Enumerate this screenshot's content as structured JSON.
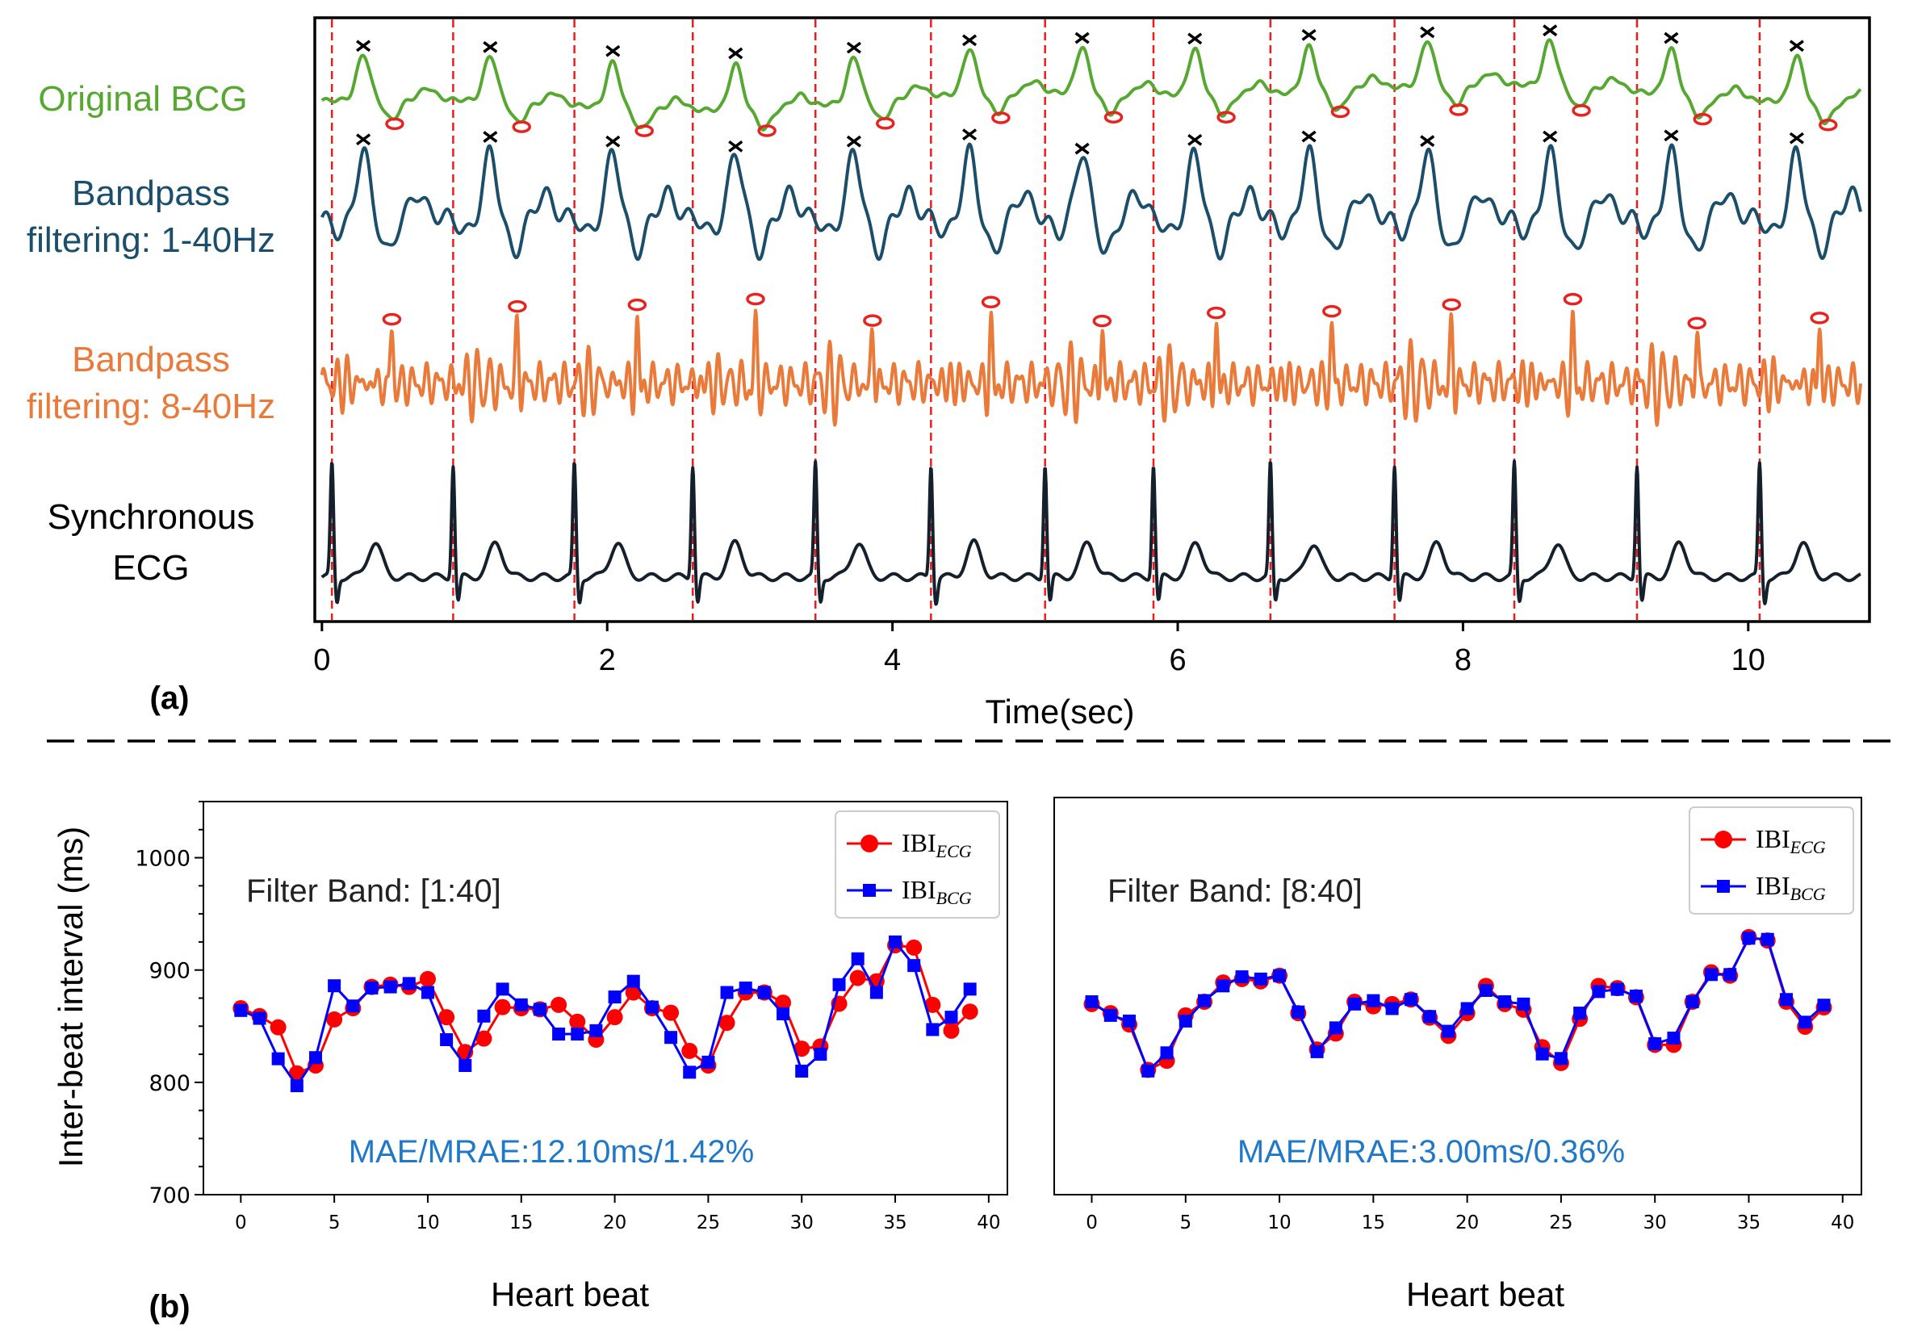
{
  "figure": {
    "panel_a_label": "(a)",
    "panel_b_label": "(b)"
  },
  "colors": {
    "original_bcg": "#56a831",
    "bp_1_40": "#1b4e6b",
    "bp_8_40": "#ea7a3a",
    "ecg": "#14202b",
    "peak_cross": "#000000",
    "peak_circle": "#e8231f",
    "beat_line": "#ee1c1c",
    "ibi_ecg": "#ff0000",
    "ibi_bcg": "#0000ff",
    "metric_text": "#1f78c8",
    "divider": "#000000"
  },
  "chart_data": [
    {
      "type": "line",
      "title": "",
      "xlabel": "Time(sec)",
      "ylabel": "",
      "xlim": [
        -0.05,
        10.85
      ],
      "xticks": [
        0,
        2,
        4,
        6,
        8,
        10
      ],
      "xtick_labels": [
        "0",
        "2",
        "4",
        "6",
        "8",
        "10"
      ],
      "signals": [
        {
          "name": "Original BCG",
          "label_lines": [
            "Original BCG"
          ],
          "color": "#56a831"
        },
        {
          "name": "Bandpass filtering: 1-40Hz",
          "label_lines": [
            "Bandpass",
            "filtering: 1-40Hz"
          ],
          "color": "#1b4e6b"
        },
        {
          "name": "Bandpass filtering: 8-40Hz",
          "label_lines": [
            "Bandpass",
            "filtering: 8-40Hz"
          ],
          "color": "#ea7a3a"
        },
        {
          "name": "Synchronous ECG",
          "label_lines": [
            "Synchronous",
            "ECG"
          ],
          "color": "#14202b"
        }
      ],
      "r_peak_times_sec": [
        0.07,
        0.92,
        1.77,
        2.6,
        3.46,
        4.27,
        5.07,
        5.83,
        6.65,
        7.52,
        8.36,
        9.22,
        10.08
      ],
      "bcg_j_peak_times_sec": [
        0.29,
        1.18,
        2.04,
        2.9,
        3.73,
        4.54,
        5.33,
        6.12,
        6.92,
        7.75,
        8.61,
        9.46,
        10.34
      ],
      "bcg_8_40_peak_times_sec": [
        0.49,
        1.37,
        2.21,
        3.04,
        3.86,
        4.69,
        5.47,
        6.27,
        7.08,
        7.92,
        8.77,
        9.64,
        10.5
      ]
    },
    {
      "type": "line",
      "title": "Filter Band: [1:40]",
      "annotation": "MAE/MRAE:12.10ms/1.42%",
      "xlabel": "Heart beat",
      "ylabel": "Inter-beat interval (ms)",
      "xlim": [
        -2,
        41
      ],
      "ylim": [
        700,
        1050
      ],
      "xticks": [
        0,
        5,
        10,
        15,
        20,
        25,
        30,
        35,
        40
      ],
      "yticks": [
        700,
        800,
        900,
        1000
      ],
      "legend_location": "top-right",
      "x": [
        0,
        1,
        2,
        3,
        4,
        5,
        6,
        7,
        8,
        9,
        10,
        11,
        12,
        13,
        14,
        15,
        16,
        17,
        18,
        19,
        20,
        21,
        22,
        23,
        24,
        25,
        26,
        27,
        28,
        29,
        30,
        31,
        32,
        33,
        34,
        35,
        36,
        37,
        38,
        39
      ],
      "series": [
        {
          "name": "IBI",
          "subscript": "ECG",
          "marker": "circle",
          "color": "#ff0000",
          "values": [
            866,
            859,
            849,
            808,
            815,
            856,
            866,
            885,
            887,
            885,
            892,
            858,
            827,
            839,
            867,
            866,
            865,
            869,
            854,
            838,
            858,
            880,
            866,
            862,
            828,
            815,
            853,
            880,
            880,
            871,
            830,
            832,
            870,
            893,
            890,
            922,
            920,
            869,
            846,
            863
          ]
        },
        {
          "name": "IBI",
          "subscript": "BCG",
          "marker": "square",
          "color": "#0000ff",
          "values": [
            864,
            857,
            821,
            797,
            822,
            886,
            868,
            884,
            885,
            888,
            880,
            838,
            815,
            859,
            883,
            869,
            865,
            843,
            843,
            846,
            876,
            890,
            867,
            840,
            809,
            818,
            880,
            884,
            880,
            861,
            810,
            825,
            887,
            910,
            880,
            925,
            904,
            847,
            858,
            883
          ]
        }
      ]
    },
    {
      "type": "line",
      "title": "Filter Band: [8:40]",
      "annotation": "MAE/MRAE:3.00ms/0.36%",
      "xlabel": "Heart beat",
      "ylabel": "",
      "xlim": [
        -2,
        41
      ],
      "ylim": [
        700,
        1050
      ],
      "xticks": [
        0,
        5,
        10,
        15,
        20,
        25,
        30,
        35,
        40
      ],
      "legend_location": "top-right",
      "x": [
        0,
        1,
        2,
        3,
        4,
        5,
        6,
        7,
        8,
        9,
        10,
        11,
        12,
        13,
        14,
        15,
        16,
        17,
        18,
        19,
        20,
        21,
        22,
        23,
        24,
        25,
        26,
        27,
        28,
        29,
        30,
        31,
        32,
        33,
        34,
        35,
        36,
        37,
        38,
        39
      ],
      "series": [
        {
          "name": "IBI",
          "subscript": "ECG",
          "marker": "circle",
          "color": "#ff0000",
          "values": [
            868,
            860,
            850,
            810,
            818,
            858,
            870,
            887,
            890,
            888,
            893,
            860,
            828,
            842,
            870,
            866,
            868,
            872,
            856,
            840,
            860,
            884,
            868,
            863,
            830,
            816,
            855,
            884,
            882,
            874,
            832,
            832,
            870,
            896,
            893,
            927,
            924,
            870,
            848,
            865
          ]
        },
        {
          "name": "IBI",
          "subscript": "BCG",
          "marker": "square",
          "color": "#0000ff",
          "values": [
            870,
            858,
            853,
            809,
            825,
            853,
            871,
            884,
            892,
            890,
            893,
            861,
            826,
            847,
            868,
            871,
            864,
            872,
            857,
            844,
            864,
            880,
            870,
            868,
            824,
            820,
            860,
            879,
            881,
            875,
            833,
            838,
            870,
            894,
            894,
            926,
            925,
            872,
            852,
            867
          ]
        }
      ]
    }
  ]
}
